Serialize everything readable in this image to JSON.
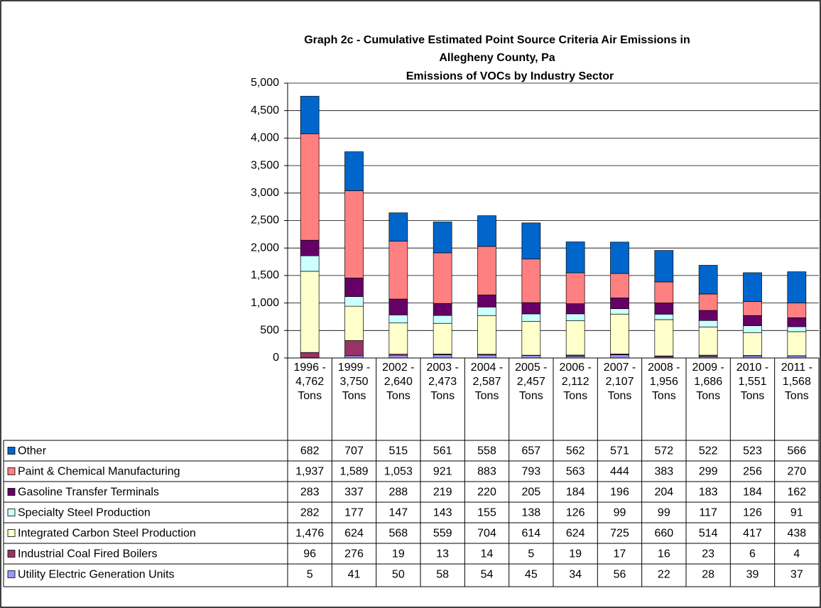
{
  "chart_data": {
    "type": "stacked_bar",
    "title": [
      "Graph 2c - Cumulative Estimated Point Source Criteria Air Emissions in",
      "Allegheny County, Pa",
      "Emissions of VOCs by Industry Sector"
    ],
    "categories": [
      "1996 - 4,762 Tons",
      "1999 - 3,750 Tons",
      "2002 - 2,640 Tons",
      "2003 - 2,473 Tons",
      "2004 - 2,587 Tons",
      "2005 - 2,457 Tons",
      "2006 - 2,112 Tons",
      "2007 - 2,107 Tons",
      "2008 - 1,956 Tons",
      "2009 - 1,686 Tons",
      "2010 - 1,551 Tons",
      "2011 - 1,568 Tons"
    ],
    "series": [
      {
        "name": "Utility Electric Generation Units",
        "color": "#9999ff",
        "values": [
          5,
          41,
          50,
          58,
          54,
          45,
          34,
          56,
          22,
          28,
          39,
          37
        ]
      },
      {
        "name": "Industrial Coal Fired Boilers",
        "color": "#993366",
        "values": [
          96,
          276,
          19,
          13,
          14,
          5,
          19,
          17,
          16,
          23,
          6,
          4
        ]
      },
      {
        "name": "Integrated Carbon Steel Production",
        "color": "#ffffcc",
        "values": [
          1476,
          624,
          568,
          559,
          704,
          614,
          624,
          725,
          660,
          514,
          417,
          438
        ],
        "value_labels": [
          "1,476",
          "624",
          "568",
          "559",
          "704",
          "614",
          "624",
          "725",
          "660",
          "514",
          "417",
          "438"
        ]
      },
      {
        "name": "Specialty Steel Production",
        "color": "#ccffff",
        "values": [
          282,
          177,
          147,
          143,
          155,
          138,
          126,
          99,
          99,
          117,
          126,
          91
        ]
      },
      {
        "name": "Gasoline Transfer Terminals",
        "color": "#660066",
        "values": [
          283,
          337,
          288,
          219,
          220,
          205,
          184,
          196,
          204,
          183,
          184,
          162
        ]
      },
      {
        "name": "Paint & Chemical Manufacturing",
        "color": "#ff8080",
        "values": [
          1937,
          1589,
          1053,
          921,
          883,
          793,
          563,
          444,
          383,
          299,
          256,
          270
        ],
        "value_labels": [
          "1,937",
          "1,589",
          "1,053",
          "921",
          "883",
          "793",
          "563",
          "444",
          "383",
          "299",
          "256",
          "270"
        ]
      },
      {
        "name": "Other",
        "color": "#0066cc",
        "values": [
          682,
          707,
          515,
          561,
          558,
          657,
          562,
          571,
          572,
          522,
          523,
          566
        ]
      }
    ],
    "ylim": [
      0,
      5000
    ],
    "yticks": [
      0,
      500,
      {
        "value": 1000,
        "label": "1,000"
      },
      {
        "value": 1500,
        "label": "1,500"
      },
      {
        "value": 2000,
        "label": "2,000"
      },
      {
        "value": 2500,
        "label": "2,500"
      },
      {
        "value": 3000,
        "label": "3,000"
      },
      {
        "value": 3500,
        "label": "3,500"
      },
      {
        "value": 4000,
        "label": "4,000"
      },
      {
        "value": 4500,
        "label": "4,500"
      },
      {
        "value": 5000,
        "label": "5,000"
      }
    ],
    "grid": true
  }
}
